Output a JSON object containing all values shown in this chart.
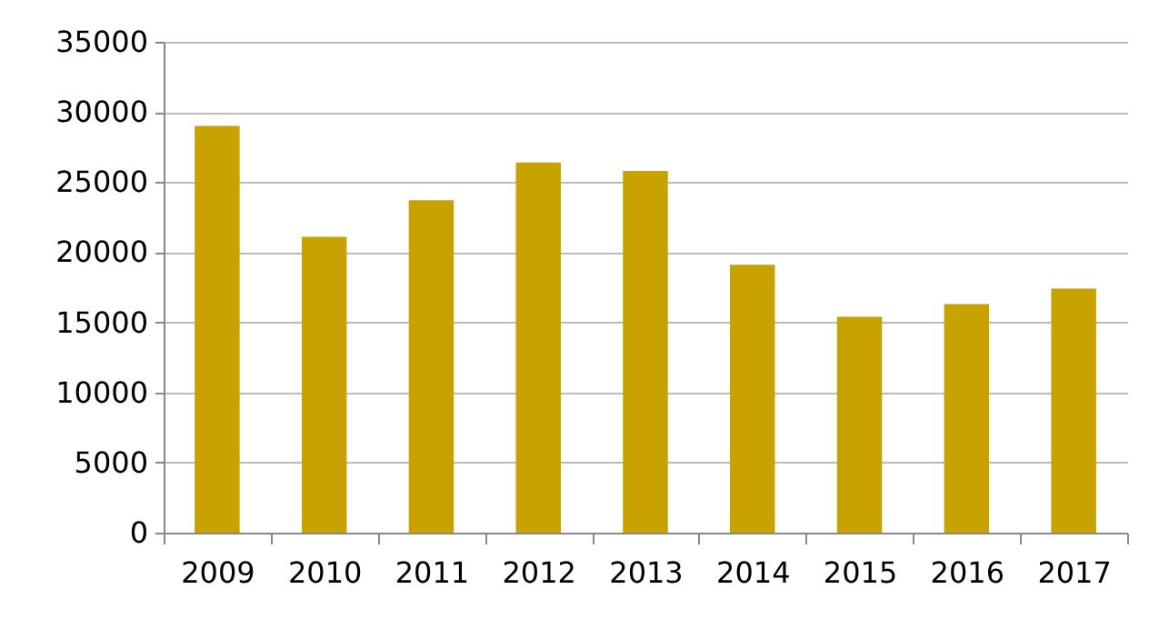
{
  "chart_data": {
    "type": "bar",
    "categories": [
      "2009",
      "2010",
      "2011",
      "2012",
      "2013",
      "2014",
      "2015",
      "2016",
      "2017"
    ],
    "values": [
      29000,
      21100,
      23700,
      26400,
      25800,
      19100,
      15400,
      16300,
      17400
    ],
    "color": "#c8a200",
    "ylim": [
      0,
      35000
    ],
    "yticks": [
      0,
      5000,
      10000,
      15000,
      20000,
      25000,
      30000,
      35000
    ],
    "grid": "y"
  }
}
